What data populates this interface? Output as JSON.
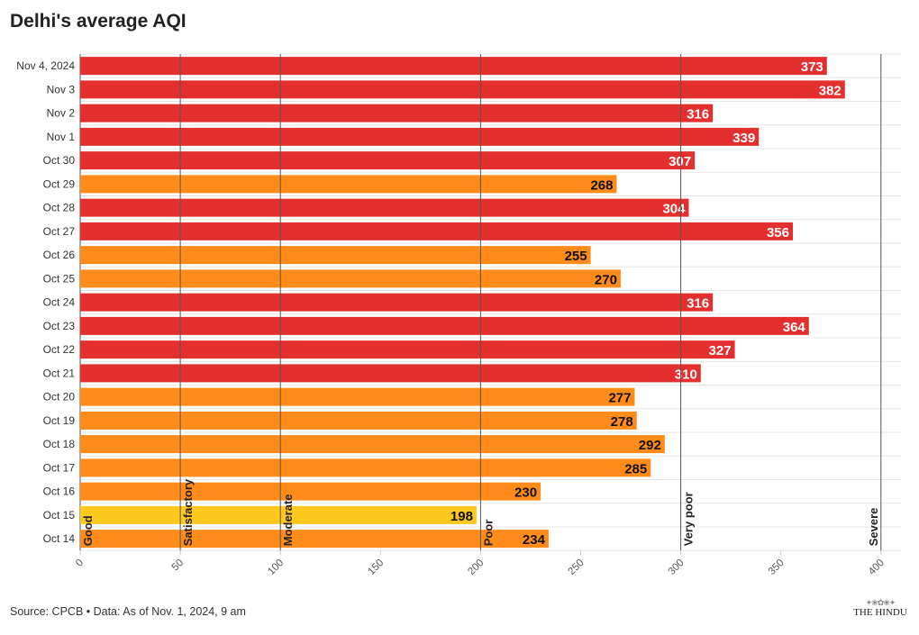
{
  "chart_data": {
    "type": "bar",
    "orientation": "horizontal",
    "title": "Delhi's average AQI",
    "categories": [
      "Nov 4, 2024",
      "Nov 3",
      "Nov 2",
      "Nov 1",
      "Oct 30",
      "Oct 29",
      "Oct 28",
      "Oct 27",
      "Oct 26",
      "Oct 25",
      "Oct 24",
      "Oct 23",
      "Oct 22",
      "Oct 21",
      "Oct 20",
      "Oct 19",
      "Oct 18",
      "Oct 17",
      "Oct 16",
      "Oct 15",
      "Oct 14"
    ],
    "values": [
      373,
      382,
      316,
      339,
      307,
      268,
      304,
      356,
      255,
      270,
      316,
      364,
      327,
      310,
      277,
      278,
      292,
      285,
      230,
      198,
      234
    ],
    "xlim": [
      0,
      410
    ],
    "xticks": [
      0,
      50,
      100,
      150,
      200,
      250,
      300,
      350,
      400
    ],
    "xlabel": "",
    "ylabel": "",
    "grid": "horizontal",
    "thresholds": [
      {
        "value": 0,
        "label": "Good"
      },
      {
        "value": 50,
        "label": "Satisfactory"
      },
      {
        "value": 100,
        "label": "Moderate"
      },
      {
        "value": 200,
        "label": "Poor"
      },
      {
        "value": 300,
        "label": "Very poor"
      },
      {
        "value": 400,
        "label": "Severe"
      }
    ],
    "colors": {
      "satisfactory_moderate": "#ffc81e",
      "poor": "#ff8c1a",
      "very_poor": "#e3302f"
    }
  },
  "source": "Source: CPCB • Data: As of Nov. 1, 2024, 9 am",
  "logo": "THE HINDU"
}
